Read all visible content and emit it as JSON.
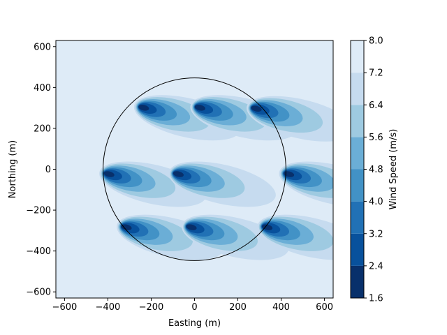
{
  "chart_data": {
    "type": "heatmap",
    "subtype": "filled-contour",
    "xlabel": "Easting (m)",
    "ylabel": "Northing (m)",
    "xlim": [
      -640,
      640
    ],
    "ylim": [
      -630,
      630
    ],
    "xticks": [
      -600,
      -400,
      -200,
      0,
      200,
      400,
      600
    ],
    "yticks": [
      -600,
      -400,
      -200,
      0,
      200,
      400,
      600
    ],
    "background_wind_speed": 8.0,
    "wind_direction_note": "wakes extend toward east-southeast",
    "boundary_circle": {
      "center": [
        0,
        0
      ],
      "radius": 422
    },
    "turbines": [
      {
        "x": -250,
        "y": 305
      },
      {
        "x": 10,
        "y": 305
      },
      {
        "x": 270,
        "y": 300
      },
      {
        "x": -410,
        "y": -20
      },
      {
        "x": -90,
        "y": -20
      },
      {
        "x": 420,
        "y": -20
      },
      {
        "x": -330,
        "y": -280
      },
      {
        "x": -30,
        "y": -280
      },
      {
        "x": 320,
        "y": -280
      }
    ],
    "colorbar": {
      "label": "Wind Speed (m/s)",
      "levels": [
        1.6,
        2.4,
        3.2,
        4.0,
        4.8,
        5.6,
        6.4,
        7.2,
        8.0
      ],
      "tick_labels": [
        "1.6",
        "2.4",
        "3.2",
        "4.0",
        "4.8",
        "5.6",
        "6.4",
        "7.2",
        "8.0"
      ],
      "colors": [
        "#08306b",
        "#08519c",
        "#2171b5",
        "#4292c6",
        "#6baed6",
        "#9ecae1",
        "#c6dbef",
        "#deebf7"
      ]
    }
  }
}
